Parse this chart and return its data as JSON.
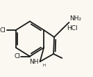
{
  "bg_color": "#faf8f0",
  "line_color": "#1a1a1a",
  "line_width": 1.3,
  "font_size": 6.5,
  "label_cl1": "Cl",
  "label_cl2": "Cl",
  "label_nh": "NH",
  "label_h": "H",
  "label_nh2": "NH₂",
  "label_hcl": "HCl"
}
